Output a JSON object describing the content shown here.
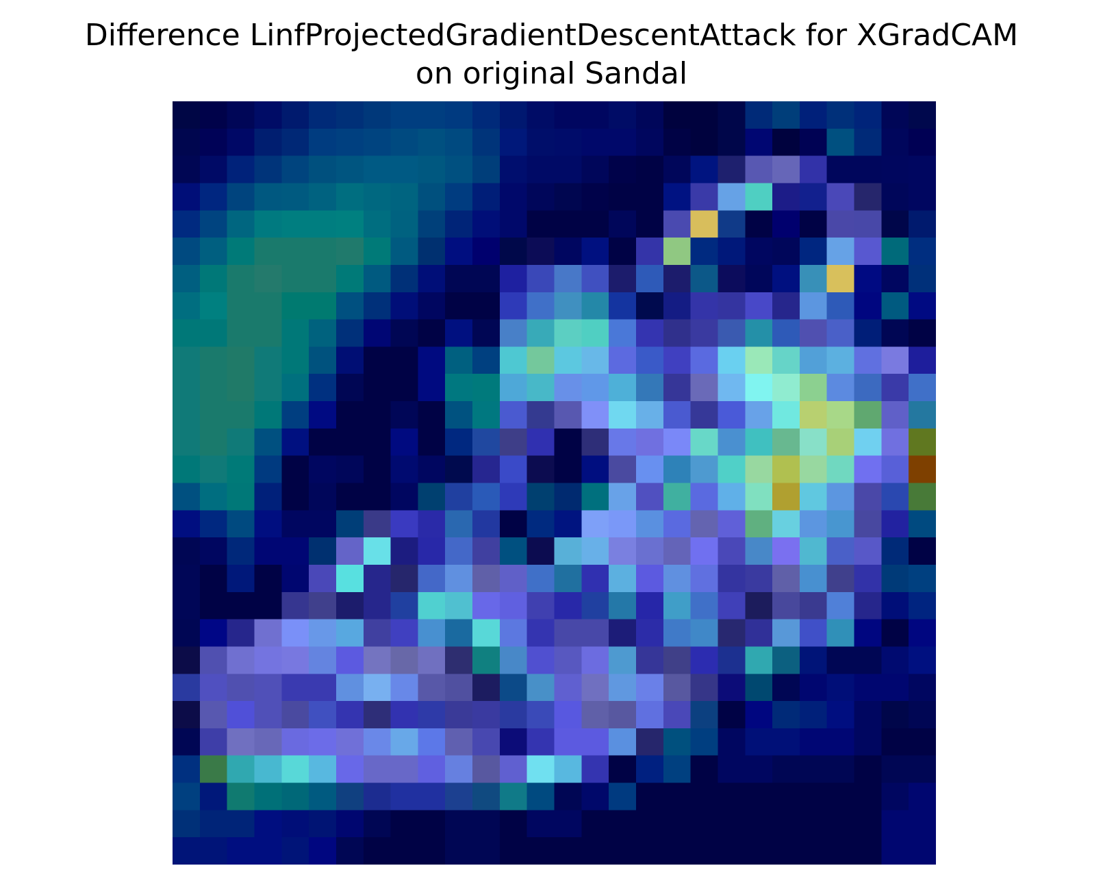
{
  "chart_data": {
    "type": "heatmap",
    "title_lines": [
      "Difference LinfProjectedGradientDescentAttack for XGradCAM",
      "on original Sandal"
    ],
    "rows": 28,
    "cols": 28,
    "axes": "off",
    "grid": false,
    "colors": {
      "background": "#ffffff",
      "title": "#000000"
    },
    "values": [
      [
        "#000645",
        "#00024a",
        "#000657",
        "#000c66",
        "#001a6e",
        "#002a78",
        "#003078",
        "#00387a",
        "#003e80",
        "#003e80",
        "#003a80",
        "#002a7a",
        "#001870",
        "#000c66",
        "#000660",
        "#000660",
        "#000c66",
        "#00065a",
        "#00023e",
        "#00023e",
        "#00064a",
        "#002a78",
        "#003e7a",
        "#00207a",
        "#00307a",
        "#00247a",
        "#000657",
        "#00084d"
      ],
      [
        "#00064f",
        "#000257",
        "#000866",
        "#001e70",
        "#002876",
        "#003c80",
        "#004080",
        "#004480",
        "#004a80",
        "#005080",
        "#004a80",
        "#00347a",
        "#00187a",
        "#000e6a",
        "#000c6a",
        "#00086a",
        "#00086a",
        "#00065e",
        "#000245",
        "#00023e",
        "#00064a",
        "#000672",
        "#00023e",
        "#000254",
        "#005080",
        "#002a78",
        "#00065c",
        "#000054"
      ],
      [
        "#000654",
        "#000a66",
        "#00227a",
        "#00347a",
        "#00447e",
        "#00507e",
        "#005580",
        "#005a84",
        "#005a84",
        "#005880",
        "#005080",
        "#003e7a",
        "#000e6e",
        "#000a66",
        "#000a66",
        "#00065a",
        "#00024a",
        "#000245",
        "#00065a",
        "#001480",
        "#1e206e",
        "#5858b2",
        "#6666b8",
        "#3232a8",
        "#00065c",
        "#00065c",
        "#00065e",
        "#000660"
      ],
      [
        "#000e78",
        "#002680",
        "#00447e",
        "#005880",
        "#005a80",
        "#006280",
        "#006e80",
        "#006880",
        "#006480",
        "#00507e",
        "#003c80",
        "#001e78",
        "#00086a",
        "#00065a",
        "#000650",
        "#00024a",
        "#000245",
        "#000245",
        "#001282",
        "#3a3aa8",
        "#66a2e6",
        "#4fcfc2",
        "#1c1c88",
        "#12208e",
        "#4a48b8",
        "#26266c",
        "#00065a",
        "#000660"
      ],
      [
        "#002a80",
        "#004480",
        "#006680",
        "#007a80",
        "#007e80",
        "#007e80",
        "#008080",
        "#006e80",
        "#006280",
        "#00407a",
        "#002478",
        "#000e78",
        "#00086a",
        "#000245",
        "#000245",
        "#000245",
        "#00065a",
        "#000245",
        "#4a4ab0",
        "#d8be5c",
        "#103a88",
        "#000245",
        "#00006e",
        "#000245",
        "#4a48a8",
        "#4848a8",
        "#00064a",
        "#001a6e"
      ],
      [
        "#004a80",
        "#005f80",
        "#007a78",
        "#1a7a6c",
        "#1a7a6c",
        "#1a7a6c",
        "#207a6c",
        "#007a78",
        "#005a80",
        "#003070",
        "#000e80",
        "#00006e",
        "#00084a",
        "#0c0c56",
        "#000660",
        "#001080",
        "#000245",
        "#3434a8",
        "#90c882",
        "#002a80",
        "#00187a",
        "#000660",
        "#00065a",
        "#002680",
        "#66a2e6",
        "#5858d0",
        "#006a7a",
        "#002e80"
      ],
      [
        "#005f80",
        "#007878",
        "#1a7a6c",
        "#247a6c",
        "#1a7a6c",
        "#1a7a6c",
        "#007a78",
        "#005a80",
        "#003078",
        "#000e78",
        "#000654",
        "#000654",
        "#1e20a0",
        "#3a48b8",
        "#4878c8",
        "#4050c0",
        "#1c1c6c",
        "#2e5ab8",
        "#1c1c6c",
        "#0c5888",
        "#0c0c5c",
        "#00065a",
        "#001080",
        "#3890b8",
        "#d8c05c",
        "#000a82",
        "#000660",
        "#00307a"
      ],
      [
        "#006e80",
        "#008080",
        "#1a7a6c",
        "#1a7a6c",
        "#007a70",
        "#007a70",
        "#005080",
        "#00307a",
        "#000e78",
        "#000660",
        "#000245",
        "#000245",
        "#2e3ab8",
        "#4070c8",
        "#4090c0",
        "#2488a8",
        "#1434a0",
        "#000a4e",
        "#141c84",
        "#3434a8",
        "#3434a0",
        "#4848c8",
        "#26268c",
        "#5c96e0",
        "#2e5ab8",
        "#000680",
        "#005a80",
        "#000a82"
      ],
      [
        "#007878",
        "#007878",
        "#1a7a6c",
        "#1a7a6c",
        "#007878",
        "#00627e",
        "#00307a",
        "#000674",
        "#000654",
        "#000245",
        "#001080",
        "#000654",
        "#4880c8",
        "#38aab8",
        "#5ccfc2",
        "#50cfc2",
        "#4a78d8",
        "#3434b0",
        "#30308c",
        "#3a3aa0",
        "#3a5ab0",
        "#2490a8",
        "#2e5ab8",
        "#5050b0",
        "#4a60c8",
        "#001e78",
        "#000654",
        "#000245"
      ],
      [
        "#107a78",
        "#1a7a6c",
        "#207a68",
        "#107a78",
        "#007878",
        "#00527e",
        "#000e74",
        "#000245",
        "#000245",
        "#000a80",
        "#006080",
        "#004080",
        "#4ec8d2",
        "#74c89c",
        "#5cc8e0",
        "#68b8e8",
        "#5c6ae0",
        "#3a5ac8",
        "#4040c0",
        "#5a6ae0",
        "#6ad0f0",
        "#9ae8b8",
        "#66d4c8",
        "#52a0d8",
        "#5cb0e0",
        "#6070e0",
        "#7a7ae0",
        "#1e1e9c"
      ],
      [
        "#107a78",
        "#1a7a6c",
        "#207a68",
        "#107a78",
        "#00707e",
        "#003080",
        "#000654",
        "#000245",
        "#000245",
        "#000a80",
        "#007880",
        "#007a7c",
        "#4ea8d8",
        "#48b8c8",
        "#6890e8",
        "#6098e8",
        "#4eb0d8",
        "#3478b8",
        "#363698",
        "#6a6ab8",
        "#70b8f0",
        "#80f4f0",
        "#90ecd0",
        "#8cd090",
        "#5c8ae0",
        "#3c6ac0",
        "#3a3aa8",
        "#4070c8"
      ],
      [
        "#107a78",
        "#1a7a6c",
        "#1a7a6c",
        "#007878",
        "#003e80",
        "#000a82",
        "#000245",
        "#000245",
        "#000657",
        "#000245",
        "#005280",
        "#007880",
        "#4a5ad0",
        "#343a90",
        "#5858b0",
        "#8090f8",
        "#70d8f0",
        "#68b0e8",
        "#4a5ad0",
        "#363898",
        "#4a5ad8",
        "#68a2e8",
        "#70e8e0",
        "#b8d070",
        "#a8d888",
        "#60a870",
        "#6060c8",
        "#2478a0"
      ],
      [
        "#107a78",
        "#1a7a6c",
        "#107a78",
        "#005080",
        "#001080",
        "#000245",
        "#000245",
        "#000245",
        "#000a80",
        "#000245",
        "#002880",
        "#2048a0",
        "#3e3e88",
        "#3030b0",
        "#000245",
        "#2e2e78",
        "#6878e8",
        "#7070e0",
        "#7a88f8",
        "#68d8c8",
        "#4a90d0",
        "#40c0c0",
        "#68b890",
        "#88e0c8",
        "#a8d078",
        "#70d0f0",
        "#7070e0",
        "#607820"
      ],
      [
        "#007878",
        "#107a78",
        "#007a78",
        "#003a80",
        "#000245",
        "#000660",
        "#00065a",
        "#000245",
        "#000a70",
        "#000660",
        "#000a4e",
        "#262690",
        "#3a4ac8",
        "#0c0c50",
        "#000245",
        "#000e80",
        "#4a4aa0",
        "#6890f0",
        "#2e82b8",
        "#4e9ad0",
        "#50d0c8",
        "#98d8a0",
        "#b0c050",
        "#98d8a0",
        "#70d8c0",
        "#7070f0",
        "#5860d8",
        "#7e4000"
      ],
      [
        "#005080",
        "#006e80",
        "#007878",
        "#00207a",
        "#000245",
        "#00065a",
        "#000245",
        "#000245",
        "#000660",
        "#004070",
        "#2040a0",
        "#2a5ab8",
        "#2e3ab8",
        "#004070",
        "#002a70",
        "#00707e",
        "#68a2e8",
        "#5050c0",
        "#40b0a0",
        "#5a6ae0",
        "#60b0e8",
        "#80e0c0",
        "#b0a030",
        "#60c8e0",
        "#5c96e0",
        "#4a48a8",
        "#2a48b0",
        "#487a38"
      ],
      [
        "#000e80",
        "#002880",
        "#004a80",
        "#000e80",
        "#000660",
        "#000660",
        "#003e78",
        "#3a3a88",
        "#3a3ac0",
        "#2a2aa8",
        "#2a68b0",
        "#2238a0",
        "#000245",
        "#002a80",
        "#001480",
        "#7ea0f8",
        "#7a98f8",
        "#5a90e0",
        "#5a6ae0",
        "#6464b0",
        "#6060d8",
        "#60b080",
        "#68d0e0",
        "#5c96e0",
        "#4896d0",
        "#4848a0",
        "#2222a0",
        "#004a80"
      ],
      [
        "#000654",
        "#000660",
        "#00287a",
        "#000674",
        "#000674",
        "#003070",
        "#6464c8",
        "#68e0e8",
        "#1c1c80",
        "#2828a8",
        "#4468c8",
        "#4040a0",
        "#005080",
        "#0c0c50",
        "#58b0d8",
        "#68b0e8",
        "#7a80e0",
        "#6a70d0",
        "#6464b8",
        "#7070f0",
        "#4a48b8",
        "#4888c8",
        "#7a70f0",
        "#50b8d0",
        "#4a60c8",
        "#5858c8",
        "#002a78",
        "#000245"
      ],
      [
        "#000657",
        "#000245",
        "#00187a",
        "#000245",
        "#000670",
        "#4a48b8",
        "#58e0e0",
        "#26268c",
        "#26266c",
        "#4468c8",
        "#6090e0",
        "#6060a8",
        "#6060c8",
        "#4070c8",
        "#2070a0",
        "#3030b0",
        "#5cb0e0",
        "#5c5ae0",
        "#6090e0",
        "#6070e0",
        "#3434a0",
        "#3a3aa0",
        "#6060a8",
        "#4890d0",
        "#40408c",
        "#3232a8",
        "#003a78",
        "#004080"
      ],
      [
        "#000657",
        "#000245",
        "#000245",
        "#000245",
        "#363690",
        "#40408c",
        "#1c1c6c",
        "#26268c",
        "#2040a0",
        "#50d0d0",
        "#50c0d0",
        "#6868e8",
        "#6060e0",
        "#4040b0",
        "#2828a8",
        "#2040a0",
        "#2478a8",
        "#2626a8",
        "#409ec8",
        "#4070c8",
        "#4040b8",
        "#1c1c5c",
        "#48489c",
        "#3a3a90",
        "#5080d8",
        "#26268c",
        "#000e78",
        "#002480"
      ],
      [
        "#000654",
        "#000686",
        "#26268c",
        "#7070d0",
        "#7a90f8",
        "#6898e8",
        "#58a8e0",
        "#4040a0",
        "#4040c0",
        "#4890d0",
        "#1a6aa0",
        "#58d8d8",
        "#5c78e0",
        "#3434b0",
        "#4848a8",
        "#4848a8",
        "#1c1c78",
        "#2c2ca8",
        "#407ac8",
        "#4088c8",
        "#282870",
        "#303098",
        "#5898d8",
        "#4050c8",
        "#3090b8",
        "#000680",
        "#000245",
        "#000680"
      ],
      [
        "#0c0c48",
        "#5050b0",
        "#7070d0",
        "#7474e0",
        "#7878e0",
        "#6484e0",
        "#5c5ae0",
        "#7474c0",
        "#6868a8",
        "#7070c0",
        "#2e2e70",
        "#108080",
        "#4888c8",
        "#5050d0",
        "#5858c0",
        "#6c6ce0",
        "#4e9ad0",
        "#363698",
        "#404088",
        "#2c2cb0",
        "#1c3090",
        "#30a8b0",
        "#0c6080",
        "#001478",
        "#000654",
        "#000654",
        "#000a70",
        "#001080"
      ],
      [
        "#2a3aa0",
        "#5050c0",
        "#5050b0",
        "#5050b8",
        "#3a3ab0",
        "#3a3ab0",
        "#6090e0",
        "#78b0f0",
        "#6888e8",
        "#5858a8",
        "#5050a0",
        "#1c1c60",
        "#0c4a88",
        "#4890c8",
        "#6060d0",
        "#7070c0",
        "#6098e0",
        "#6a80e8",
        "#5858a0",
        "#363688",
        "#0c0c78",
        "#004870",
        "#000654",
        "#000670",
        "#000e78",
        "#000670",
        "#000670",
        "#000660"
      ],
      [
        "#0c0c48",
        "#5858b0",
        "#5050d8",
        "#5050b8",
        "#4a4aa0",
        "#4050c0",
        "#3434b0",
        "#2e2e78",
        "#3232b0",
        "#2e3aa8",
        "#3a3a98",
        "#3a3aa0",
        "#2a3aa0",
        "#3a4ab8",
        "#5858e0",
        "#6060a8",
        "#5858a0",
        "#6070e0",
        "#4a48b8",
        "#0c4080",
        "#000245",
        "#000680",
        "#002a78",
        "#00207a",
        "#000e80",
        "#000660",
        "#00064a",
        "#000654"
      ],
      [
        "#000654",
        "#3e3ea8",
        "#7070c0",
        "#6868b8",
        "#6a6ae0",
        "#6c6ce8",
        "#7070d8",
        "#6a88e8",
        "#68a8e8",
        "#5c78e8",
        "#6060b0",
        "#4848b0",
        "#0c0c78",
        "#3434b0",
        "#5c5ae0",
        "#5c5ae0",
        "#5a90e0",
        "#26266c",
        "#00507e",
        "#003e80",
        "#000660",
        "#001078",
        "#001078",
        "#000674",
        "#000674",
        "#000660",
        "#000245",
        "#000245"
      ],
      [
        "#003080",
        "#3a7a48",
        "#30a8b0",
        "#48b8d0",
        "#58d8d8",
        "#58b8e0",
        "#6868e8",
        "#6868c8",
        "#6868c8",
        "#6060e0",
        "#6680e0",
        "#5858a0",
        "#6060d0",
        "#70e0f0",
        "#58b8e0",
        "#3434b0",
        "#000245",
        "#002080",
        "#004080",
        "#000245",
        "#000660",
        "#000660",
        "#000654",
        "#000654",
        "#000654",
        "#000245",
        "#000654",
        "#000654"
      ],
      [
        "#004080",
        "#00187a",
        "#107a70",
        "#007078",
        "#006878",
        "#005a80",
        "#104080",
        "#1c2c90",
        "#2030a0",
        "#2030a0",
        "#1c4090",
        "#104a80",
        "#107a88",
        "#004a80",
        "#000654",
        "#00086a",
        "#003a80",
        "#000245",
        "#000245",
        "#000245",
        "#000245",
        "#000245",
        "#000245",
        "#000245",
        "#000245",
        "#000245",
        "#000660",
        "#000670"
      ],
      [
        "#003078",
        "#002478",
        "#002478",
        "#000e80",
        "#000e78",
        "#001474",
        "#000670",
        "#000654",
        "#000245",
        "#000245",
        "#000654",
        "#000654",
        "#000245",
        "#000660",
        "#000660",
        "#000245",
        "#000245",
        "#000245",
        "#000245",
        "#000245",
        "#000245",
        "#000245",
        "#000245",
        "#000245",
        "#000245",
        "#000245",
        "#000670",
        "#000670"
      ],
      [
        "#001478",
        "#001478",
        "#000e80",
        "#000e80",
        "#001478",
        "#000680",
        "#000654",
        "#000245",
        "#000245",
        "#000245",
        "#000654",
        "#000654",
        "#000245",
        "#000245",
        "#000245",
        "#000245",
        "#000245",
        "#000245",
        "#000245",
        "#000245",
        "#000245",
        "#000245",
        "#000245",
        "#000245",
        "#000245",
        "#000245",
        "#000670",
        "#000670"
      ]
    ]
  }
}
